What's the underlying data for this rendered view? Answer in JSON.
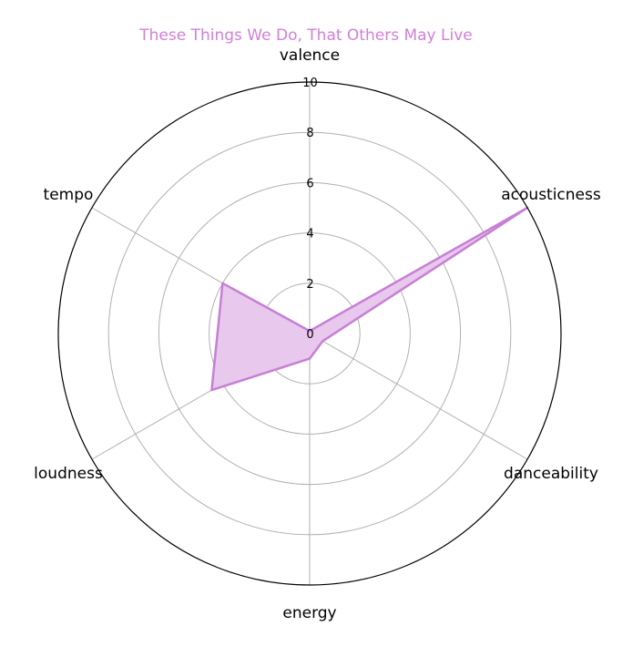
{
  "chart_data": {
    "type": "radar",
    "title": "These Things We Do, That Others May Live",
    "title_color": "#d17fd9",
    "axes": [
      "valence",
      "acousticness",
      "danceability",
      "energy",
      "loudness",
      "tempo"
    ],
    "series": [
      {
        "values": [
          0.1,
          10,
          0.6,
          1.0,
          4.5,
          4.0
        ],
        "color": "#c77fd6",
        "fill_color": "#e8c8ec"
      }
    ],
    "rlim": [
      0,
      10
    ],
    "radial_ticks": [
      0,
      2,
      4,
      6,
      8,
      10
    ],
    "radial_tick_labels": [
      "0",
      "2",
      "4",
      "6",
      "8",
      "10"
    ],
    "grid": true,
    "legend": "none"
  }
}
